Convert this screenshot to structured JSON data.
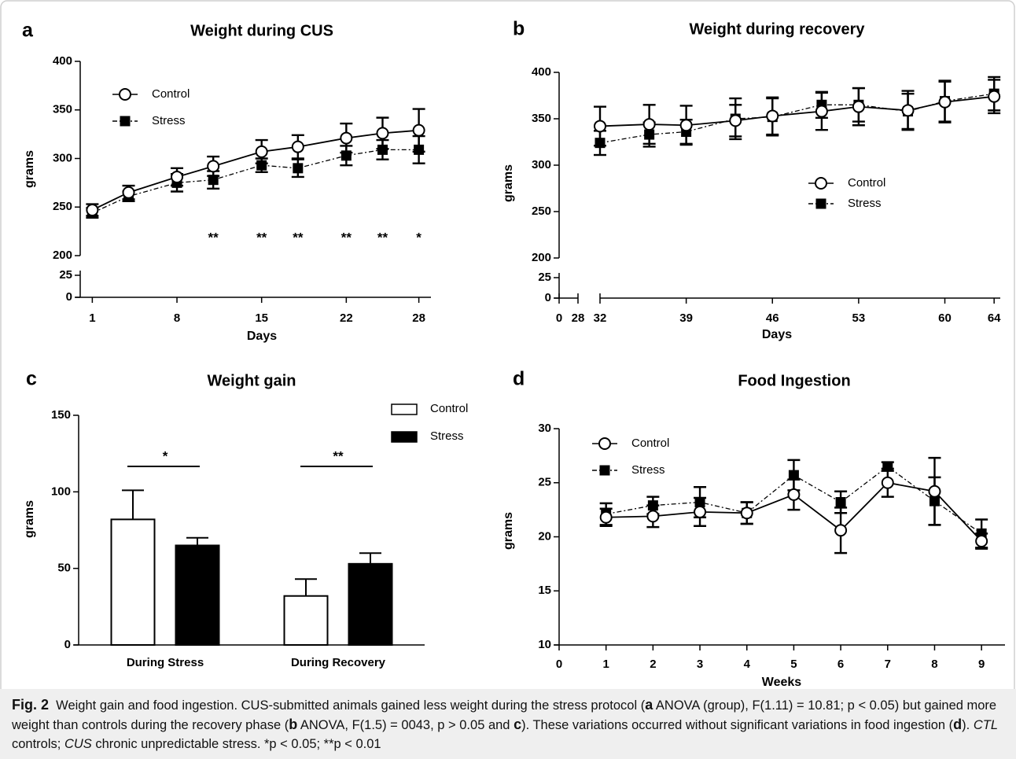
{
  "chart_data": [
    {
      "type": "line",
      "panel": "a",
      "title": "Weight during CUS",
      "x_label": "Days",
      "y_label": "grams",
      "xlim": [
        0,
        29
      ],
      "xticks": [
        1,
        8,
        15,
        22,
        28
      ],
      "ylim": [
        200,
        400
      ],
      "yticks": [
        200,
        250,
        300,
        350,
        400
      ],
      "lower_ylim": [
        0,
        25
      ],
      "lower_yticks": [
        0,
        25
      ],
      "legend": "upper left",
      "series": [
        {
          "name": "Control",
          "color": "#000000",
          "marker": "circle",
          "line_style": "solid",
          "x": [
            1,
            4,
            8,
            11,
            15,
            18,
            22,
            25,
            28
          ],
          "values": [
            247,
            265,
            281,
            292,
            307,
            312,
            321,
            326,
            329
          ],
          "errors": [
            6,
            7,
            9,
            10,
            12,
            12,
            15,
            16,
            22
          ]
        },
        {
          "name": "Stress",
          "color": "#000000",
          "marker": "square",
          "line_style": "dashdot",
          "x": [
            1,
            4,
            8,
            11,
            15,
            18,
            22,
            25,
            28
          ],
          "values": [
            244,
            261,
            275,
            278,
            293,
            290,
            303,
            309,
            309
          ],
          "errors": [
            5,
            5,
            9,
            9,
            7,
            9,
            10,
            10,
            14
          ]
        }
      ],
      "annotations": [
        {
          "x": 11,
          "text": "**"
        },
        {
          "x": 15,
          "text": "**"
        },
        {
          "x": 18,
          "text": "**"
        },
        {
          "x": 22,
          "text": "**"
        },
        {
          "x": 25,
          "text": "**"
        },
        {
          "x": 28,
          "text": "*"
        }
      ]
    },
    {
      "type": "line",
      "panel": "b",
      "title": "Weight during recovery",
      "x_label": "Days",
      "y_label": "grams",
      "xlim": [
        32,
        64.5
      ],
      "xticks": [
        32,
        39,
        46,
        53,
        60,
        64
      ],
      "left_xlim": [
        0,
        28
      ],
      "left_xticks": [
        0,
        28
      ],
      "ylim": [
        200,
        400
      ],
      "yticks": [
        200,
        250,
        300,
        350,
        400
      ],
      "lower_ylim": [
        0,
        25
      ],
      "lower_yticks": [
        0,
        25
      ],
      "legend": "center right",
      "series": [
        {
          "name": "Control",
          "color": "#000000",
          "marker": "circle",
          "line_style": "solid",
          "x": [
            32,
            36,
            39,
            43,
            46,
            50,
            53,
            57,
            60,
            64
          ],
          "values": [
            342,
            344,
            343,
            348,
            353,
            358,
            363,
            359,
            368,
            374
          ],
          "errors": [
            21,
            21,
            21,
            17,
            20,
            20,
            20,
            21,
            22,
            18
          ]
        },
        {
          "name": "Stress",
          "color": "#000000",
          "marker": "square",
          "line_style": "dashdot",
          "x": [
            32,
            36,
            39,
            43,
            46,
            50,
            53,
            57,
            60,
            64
          ],
          "values": [
            324,
            333,
            336,
            350,
            352,
            365,
            365,
            358,
            369,
            377
          ],
          "errors": [
            13,
            13,
            13,
            22,
            20,
            14,
            18,
            19,
            22,
            18
          ]
        }
      ]
    },
    {
      "type": "bar",
      "panel": "c",
      "title": "Weight gain",
      "y_label": "grams",
      "categories": [
        "During Stress",
        "During Recovery"
      ],
      "ylim": [
        0,
        150
      ],
      "yticks": [
        0,
        50,
        100,
        150
      ],
      "legend": "upper right",
      "series": [
        {
          "name": "Control",
          "color": "#ffffff",
          "values": [
            82,
            32
          ],
          "errors": [
            19,
            11
          ]
        },
        {
          "name": "Stress",
          "color": "#000000",
          "values": [
            65,
            53
          ],
          "errors": [
            5,
            7
          ]
        }
      ],
      "annotations": [
        "*",
        "**"
      ]
    },
    {
      "type": "line",
      "panel": "d",
      "title": "Food Ingestion",
      "x_label": "Weeks",
      "y_label": "grams",
      "xlim": [
        0,
        9.5
      ],
      "xticks": [
        0,
        1,
        2,
        3,
        4,
        5,
        6,
        7,
        8,
        9
      ],
      "ylim": [
        10,
        30
      ],
      "yticks": [
        10,
        15,
        20,
        25,
        30
      ],
      "legend": "upper left",
      "series": [
        {
          "name": "Control",
          "color": "#000000",
          "marker": "circle",
          "line_style": "solid",
          "x": [
            1,
            2,
            3,
            4,
            5,
            6,
            7,
            8,
            9
          ],
          "values": [
            21.8,
            21.9,
            22.3,
            22.2,
            23.9,
            20.6,
            25.0,
            24.2,
            19.6
          ],
          "errors": [
            0.8,
            1.0,
            1.3,
            1.0,
            1.4,
            2.1,
            1.3,
            3.1,
            0.7
          ]
        },
        {
          "name": "Stress",
          "color": "#000000",
          "marker": "square",
          "line_style": "dashdot",
          "x": [
            1,
            2,
            3,
            4,
            5,
            6,
            7,
            8,
            9
          ],
          "values": [
            22.1,
            22.9,
            23.2,
            22.2,
            25.7,
            23.2,
            26.5,
            23.3,
            20.3
          ],
          "errors": [
            1.0,
            0.8,
            1.4,
            1.0,
            1.4,
            1.0,
            0.4,
            2.2,
            1.3
          ]
        }
      ]
    }
  ],
  "caption": [
    {
      "text": "Fig. 2",
      "style": "bold"
    },
    {
      "text": "  Weight gain and food ingestion. CUS-submitted animals gained less weight during the stress protocol (",
      "style": "normal"
    },
    {
      "text": "a",
      "style": "bold"
    },
    {
      "text": " ANOVA (group), F(1.11) = 10.81; p < 0.05) but gained more weight than controls during the recovery phase (",
      "style": "normal"
    },
    {
      "text": "b",
      "style": "bold"
    },
    {
      "text": " ANOVA, F(1.5) = 0043, p > 0.05 and ",
      "style": "normal"
    },
    {
      "text": "c",
      "style": "bold"
    },
    {
      "text": "). These variations occurred without significant variations in food ingestion (",
      "style": "normal"
    },
    {
      "text": "d",
      "style": "bold"
    },
    {
      "text": "). ",
      "style": "normal"
    },
    {
      "text": "CTL",
      "style": "italic"
    },
    {
      "text": " controls; ",
      "style": "normal"
    },
    {
      "text": "CUS",
      "style": "italic"
    },
    {
      "text": " chronic unpredictable stress. *p < 0.05; **p < 0.01",
      "style": "normal"
    }
  ]
}
